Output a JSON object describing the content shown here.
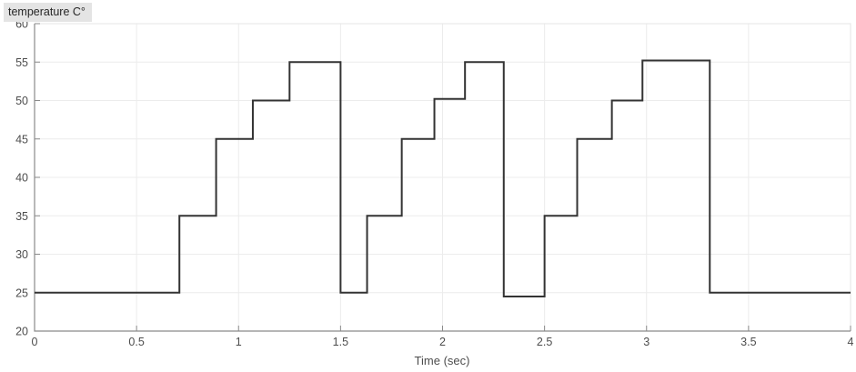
{
  "colors": {
    "line": "#333333",
    "grid": "#ececec",
    "box": "#e6e6e6",
    "axis": "#8a8a8a",
    "tick_label": "#4d4d4d",
    "title_bg": "#e4e4e4",
    "title_text": "#262626",
    "background": "#ffffff"
  },
  "chart_data": {
    "type": "line",
    "line_style": "step-after",
    "title": "temperature C°",
    "xlabel": "Time (sec)",
    "ylabel": "",
    "grid": true,
    "legend": false,
    "xlim": [
      0,
      4
    ],
    "ylim": [
      20,
      60
    ],
    "xticks": [
      0,
      0.5,
      1,
      1.5,
      2,
      2.5,
      3,
      3.5,
      4
    ],
    "xtick_labels": [
      "0",
      "0.5",
      "1",
      "1.5",
      "2",
      "2.5",
      "3",
      "3.5",
      "4"
    ],
    "yticks": [
      20,
      25,
      30,
      35,
      40,
      45,
      50,
      55,
      60
    ],
    "ytick_labels": [
      "20",
      "25",
      "30",
      "35",
      "40",
      "45",
      "50",
      "55",
      "60"
    ],
    "series": [
      {
        "name": "temperature",
        "color": "#333333",
        "points": [
          [
            0,
            25
          ],
          [
            0.71,
            35
          ],
          [
            0.89,
            45
          ],
          [
            1.07,
            50
          ],
          [
            1.25,
            55
          ],
          [
            1.5,
            25
          ],
          [
            1.63,
            35
          ],
          [
            1.8,
            45
          ],
          [
            1.96,
            50.2
          ],
          [
            2.11,
            55
          ],
          [
            2.3,
            24.5
          ],
          [
            2.5,
            35
          ],
          [
            2.66,
            45
          ],
          [
            2.83,
            50
          ],
          [
            2.98,
            55.2
          ],
          [
            3.31,
            25
          ]
        ],
        "hold_until": 4
      }
    ]
  }
}
